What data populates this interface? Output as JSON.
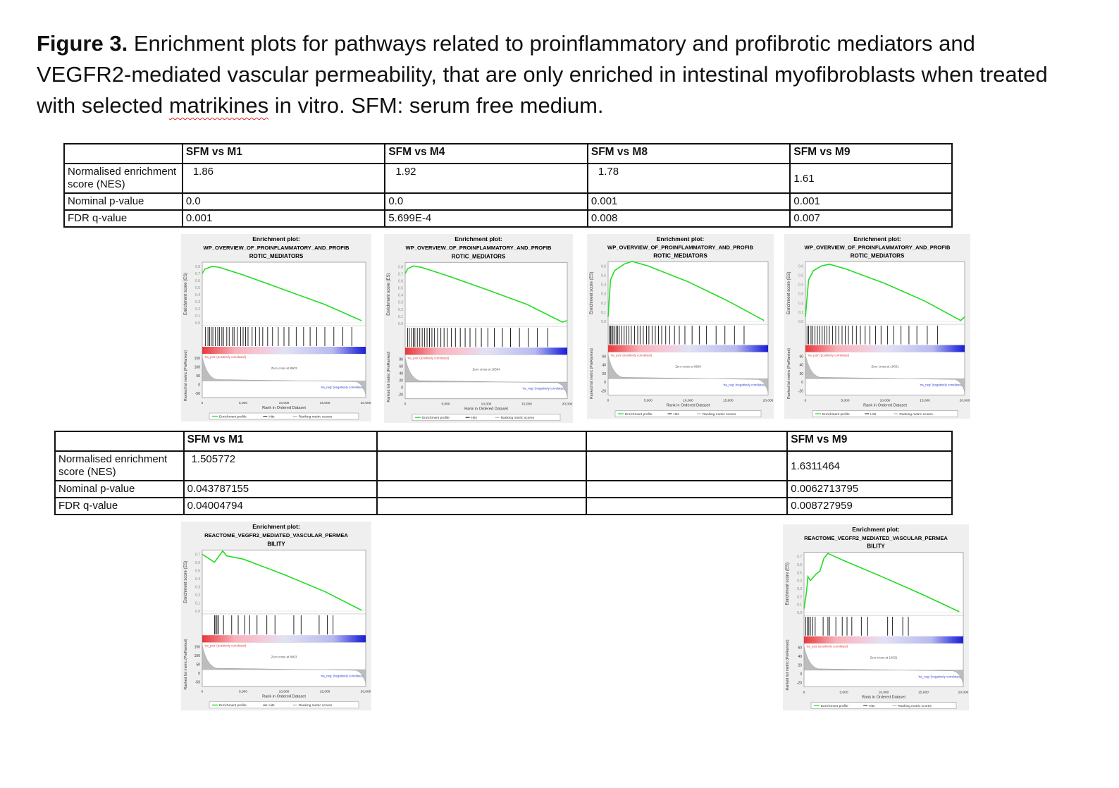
{
  "caption": {
    "label": "Figure 3.",
    "text_before": " Enrichment plots for pathways related to proinflammatory and profibrotic mediators and VEGFR2-mediated vascular permeability, that are only enriched in intestinal myofibroblasts when treated with selected ",
    "misspelled_word": "matrikines",
    "text_after": " in vitro. SFM: serum free medium."
  },
  "row_labels": {
    "nes": "Normalised enrichment score (NES)",
    "pval": "Nominal p-value",
    "fdr": "FDR q-value"
  },
  "table1": {
    "headers": [
      "SFM vs M1",
      "SFM vs M4",
      "SFM vs M8",
      "SFM vs M9"
    ],
    "nes": [
      "1.86",
      "1.92",
      "1.78",
      "1.61"
    ],
    "pval": [
      "0.0",
      "0.0",
      "0.001",
      "0.001"
    ],
    "fdr": [
      "0.001",
      "5.699E-4",
      "0.008",
      "0.007"
    ]
  },
  "table2": {
    "headers": [
      "SFM vs M1",
      "",
      "",
      "SFM vs M9"
    ],
    "nes": [
      "1.505772",
      "",
      "",
      "1.6311464"
    ],
    "pval": [
      "0.043787155",
      "",
      "",
      "0.0062713795"
    ],
    "fdr": [
      "0.04004794",
      "",
      "",
      "0.008727959"
    ]
  },
  "plot_text": {
    "heading": "Enrichment plot:",
    "title_proinflam_1": "WP_OVERVIEW_OF_PROINFLAMMATORY_AND_PROFIB",
    "title_proinflam_2": "ROTIC_MEDIATORS",
    "title_vegfr_1": "REACTOME_VEGFR2_MEDIATED_VASCULAR_PERMEA",
    "title_vegfr_2": "BILITY",
    "es_axis": "Enrichment score (ES)",
    "metric_axis": "Ranked list metric (PreRanked)",
    "x_axis": "Rank in Ordered Dataset",
    "pos_label": "'na_pos' (positively correlated)",
    "neg_label": "'na_neg' (negatively correlated)",
    "legend_profile": "Enrichment profile",
    "legend_hits": "Hits",
    "legend_metric": "Ranking metric scores",
    "x_ticks": [
      "0",
      "5,000",
      "10,000",
      "15,000",
      "20,000"
    ]
  },
  "plots": [
    {
      "id": "p1",
      "title": "proinflam",
      "es_ticks": [
        "0.8",
        "0.7",
        "0.6",
        "0.5",
        "0.4",
        "0.3",
        "0.2",
        "0.1",
        "0.0"
      ],
      "metric_ticks": [
        "150",
        "100",
        "50",
        "0",
        "-50"
      ],
      "zero_cross": "Zero cross at 8903",
      "es_curve": [
        [
          0,
          0.7
        ],
        [
          300,
          0.76
        ],
        [
          1200,
          0.8
        ],
        [
          2000,
          0.79
        ],
        [
          5000,
          0.68
        ],
        [
          10000,
          0.47
        ],
        [
          15000,
          0.26
        ],
        [
          19500,
          0.03
        ]
      ],
      "hits": [
        400,
        700,
        900,
        1100,
        1300,
        1600,
        1900,
        2100,
        2400,
        2600,
        3000,
        3300,
        3700,
        3900,
        4300,
        4700,
        5000,
        5300,
        5600,
        6100,
        6500,
        7000,
        7400,
        8000,
        8600,
        9300,
        10000,
        10600,
        11500,
        12400,
        13200,
        14000,
        15000,
        16100,
        17200,
        18300
      ]
    },
    {
      "id": "p2",
      "title": "proinflam",
      "es_ticks": [
        "0.8",
        "0.7",
        "0.6",
        "0.5",
        "0.4",
        "0.3",
        "0.2",
        "0.1",
        "0.0"
      ],
      "metric_ticks": [
        "80",
        "60",
        "40",
        "20",
        "0",
        "-20"
      ],
      "zero_cross": "Zero cross at 10504",
      "es_curve": [
        [
          0,
          0.7
        ],
        [
          300,
          0.77
        ],
        [
          1000,
          0.81
        ],
        [
          2000,
          0.79
        ],
        [
          5000,
          0.68
        ],
        [
          10000,
          0.48
        ],
        [
          15000,
          0.27
        ],
        [
          19400,
          0.02
        ],
        [
          20000,
          0.04
        ]
      ],
      "hits": [
        300,
        500,
        800,
        1000,
        1200,
        1500,
        1800,
        2100,
        2400,
        2700,
        3000,
        3300,
        3600,
        4000,
        4400,
        4800,
        5200,
        5700,
        6200,
        6800,
        7400,
        8000,
        8700,
        9400,
        10200,
        11000,
        12000,
        13000,
        14100,
        15200,
        16300,
        17600
      ]
    },
    {
      "id": "p3",
      "title": "proinflam",
      "es_ticks": [
        "0.6",
        "0.5",
        "0.4",
        "0.3",
        "0.2",
        "0.1",
        "0.0"
      ],
      "metric_ticks": [
        "60",
        "40",
        "20",
        "0",
        "-20"
      ],
      "zero_cross": "Zero cross at 9909",
      "es_curve": [
        [
          0,
          0.05
        ],
        [
          300,
          0.45
        ],
        [
          800,
          0.55
        ],
        [
          2000,
          0.62
        ],
        [
          3000,
          0.65
        ],
        [
          5000,
          0.6
        ],
        [
          10000,
          0.43
        ],
        [
          15000,
          0.22
        ],
        [
          19500,
          0.01
        ]
      ],
      "hits": [
        150,
        300,
        450,
        600,
        800,
        1000,
        1200,
        1400,
        1700,
        2000,
        2300,
        2600,
        2900,
        3300,
        3700,
        4000,
        4400,
        4800,
        5100,
        5500,
        5900,
        6300,
        6700,
        7200,
        7700,
        8300,
        8900,
        9600,
        10500,
        11400,
        12300,
        13500,
        14600,
        15800,
        17000
      ]
    },
    {
      "id": "p4",
      "title": "proinflam",
      "es_ticks": [
        "0.6",
        "0.5",
        "0.4",
        "0.3",
        "0.2",
        "0.1",
        "0.0"
      ],
      "metric_ticks": [
        "60",
        "40",
        "20",
        "0",
        "-20"
      ],
      "zero_cross": "Zero cross at 10031",
      "es_curve": [
        [
          0,
          0.05
        ],
        [
          400,
          0.45
        ],
        [
          1000,
          0.55
        ],
        [
          2000,
          0.6
        ],
        [
          3000,
          0.62
        ],
        [
          5000,
          0.57
        ],
        [
          10000,
          0.41
        ],
        [
          15000,
          0.22
        ],
        [
          19500,
          0.01
        ],
        [
          20000,
          0.05
        ]
      ],
      "hits": [
        200,
        400,
        700,
        900,
        1200,
        1500,
        1800,
        2100,
        2400,
        2700,
        3000,
        3400,
        3800,
        4200,
        4600,
        5000,
        5400,
        5900,
        6400,
        6900,
        7500,
        8100,
        8800,
        9500,
        10300,
        11100,
        12000,
        13000,
        14000,
        15300,
        16600
      ]
    },
    {
      "id": "p5",
      "title": "vegfr",
      "es_ticks": [
        "0.7",
        "0.6",
        "0.5",
        "0.4",
        "0.3",
        "0.2",
        "0.1",
        "0.0"
      ],
      "metric_ticks": [
        "150",
        "100",
        "50",
        "0",
        "-50"
      ],
      "zero_cross": "Zero cross at 8903",
      "es_curve": [
        [
          0,
          0.7
        ],
        [
          1500,
          0.6
        ],
        [
          2500,
          0.74
        ],
        [
          3000,
          0.68
        ],
        [
          5000,
          0.64
        ],
        [
          10000,
          0.45
        ],
        [
          15000,
          0.24
        ],
        [
          19500,
          0.01
        ]
      ],
      "hits": [
        1500,
        1650,
        1800,
        2000,
        2600,
        3600,
        4400,
        5200,
        5800,
        6700,
        7900,
        8900,
        11200,
        12100,
        14300,
        15300,
        16000
      ]
    },
    {
      "id": "p6",
      "title": "vegfr",
      "es_ticks": [
        "0.7",
        "0.6",
        "0.5",
        "0.4",
        "0.3",
        "0.2",
        "0.1",
        "0.0"
      ],
      "metric_ticks": [
        "60",
        "40",
        "20",
        "0",
        "-20"
      ],
      "zero_cross": "Zero cross at 10031",
      "es_curve": [
        [
          0,
          0.05
        ],
        [
          300,
          0.25
        ],
        [
          500,
          0.45
        ],
        [
          800,
          0.4
        ],
        [
          1500,
          0.48
        ],
        [
          2000,
          0.52
        ],
        [
          2500,
          0.68
        ],
        [
          3000,
          0.74
        ],
        [
          5000,
          0.65
        ],
        [
          10000,
          0.44
        ],
        [
          15000,
          0.22
        ],
        [
          19500,
          0.01
        ]
      ],
      "hits": [
        200,
        400,
        600,
        800,
        1100,
        1400,
        2400,
        3000,
        3200,
        4000,
        4800,
        5400,
        6000,
        7200,
        8000,
        10500,
        11100,
        12400,
        13100
      ]
    }
  ]
}
